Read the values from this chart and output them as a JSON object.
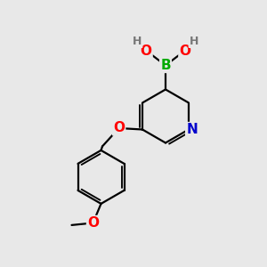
{
  "background_color": "#e8e8e8",
  "bond_color": "#000000",
  "bond_width": 1.6,
  "atom_colors": {
    "B": "#00aa00",
    "O": "#ff0000",
    "N": "#0000cc",
    "H": "#777777",
    "C": "#000000"
  },
  "font_size_atom": 11,
  "font_size_H": 9,
  "figsize": [
    3.0,
    3.0
  ],
  "dpi": 100
}
